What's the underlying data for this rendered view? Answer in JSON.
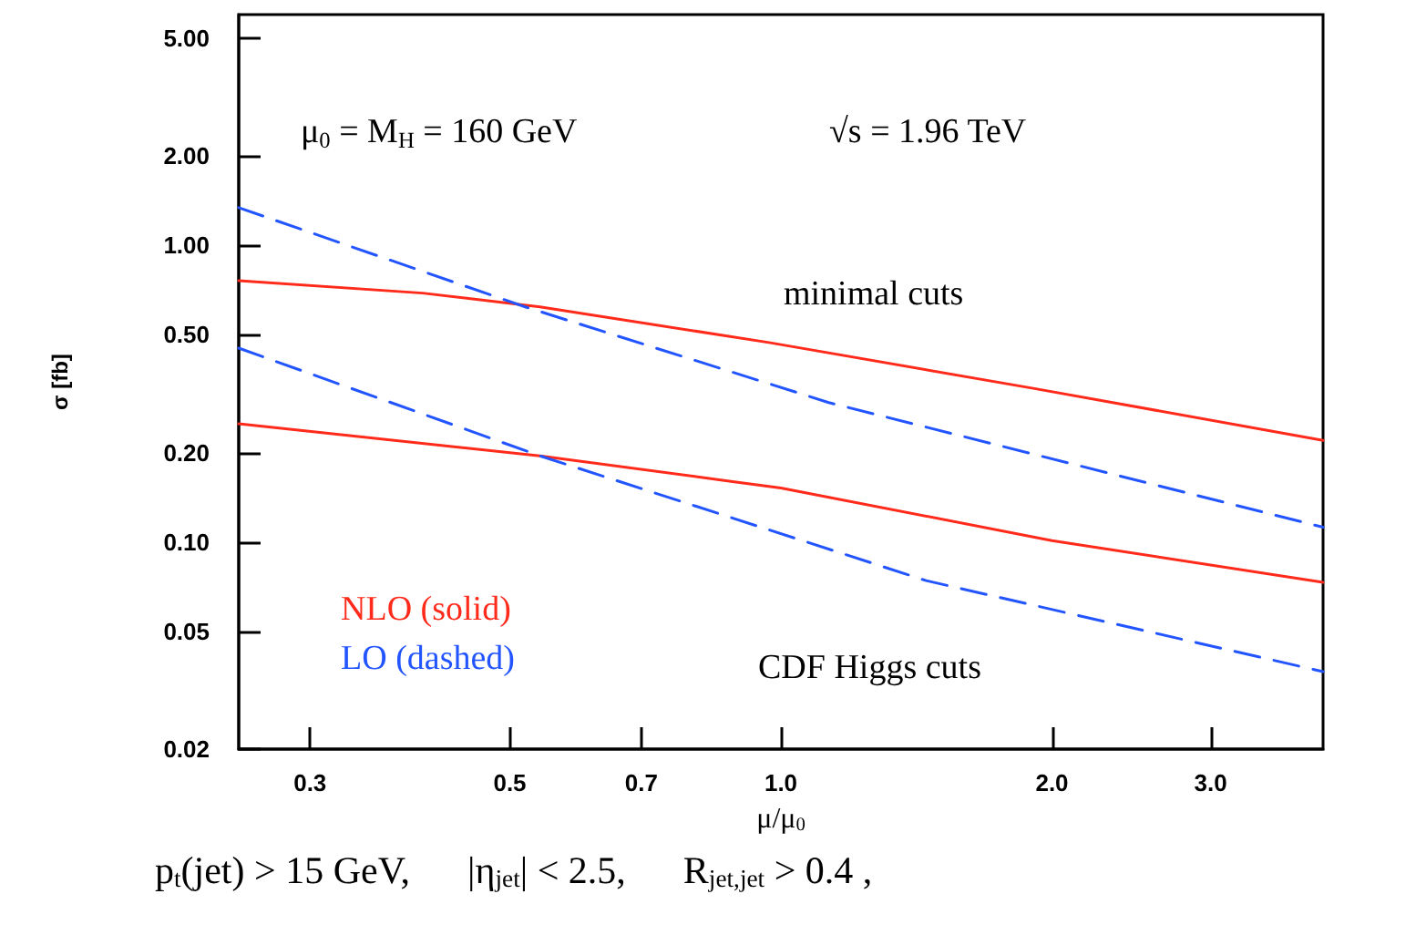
{
  "chart_data": {
    "type": "line",
    "xlabel": "μ/μ$_{0}$",
    "ylabel": "σ [fb]",
    "log": "xy",
    "grid": false,
    "legend": "bottom left",
    "marker": "none",
    "xlim": [
      0.25,
      4
    ],
    "ylim": [
      0.02,
      6
    ],
    "xticks": [
      0.3,
      0.5,
      0.7,
      {
        "value": 1,
        "label": "1.0"
      },
      {
        "value": 2,
        "label": "2.0"
      },
      {
        "value": 3,
        "label": "3.0"
      }
    ],
    "yticks": [
      0.02,
      0.05,
      {
        "value": 0.1,
        "label": "0.10"
      },
      {
        "value": 0.2,
        "label": "0.20"
      },
      {
        "value": 0.5,
        "label": "0.50"
      },
      {
        "value": 1,
        "label": "1.00"
      },
      {
        "value": 2,
        "label": "2.00"
      },
      {
        "value": 5,
        "label": "5.00"
      }
    ],
    "series": [
      {
        "name": "NLO (solid)",
        "color": "#ff2a1a",
        "line_style": "solid",
        "x": [
          0.25,
          0.4,
          0.54,
          0.97,
          1.9,
          4
        ],
        "values": [
          0.76,
          0.69,
          0.62,
          0.47,
          0.33,
          0.22
        ]
      },
      {
        "name": "LO (dashed)",
        "color": "#2255ff",
        "line_style": "dashed",
        "x": [
          0.25,
          0.52,
          1.13,
          4
        ],
        "values": [
          1.34,
          0.62,
          0.295,
          0.112
        ]
      },
      {
        "color": "#ff2a1a",
        "line_style": "solid",
        "x": [
          0.25,
          0.54,
          0.88,
          1,
          2,
          4
        ],
        "values": [
          0.25,
          0.195,
          0.16,
          0.152,
          0.101,
          0.073
        ]
      },
      {
        "color": "#2255ff",
        "line_style": "dashed",
        "x": [
          0.25,
          0.54,
          1.45,
          4
        ],
        "values": [
          0.45,
          0.195,
          0.074,
          0.0365
        ]
      }
    ],
    "annotations": [
      "μ$_{0}$ = M$_{H}$ = 160 GeV",
      "√s = 1.96 TeV",
      "minimal cuts",
      "CDF Higgs cuts",
      "p$_{t}$(jet) > 15 GeV,      |η$_{jet}$| < 2.5,      R$_{jet,jet}$ > 0.4 ,"
    ]
  }
}
